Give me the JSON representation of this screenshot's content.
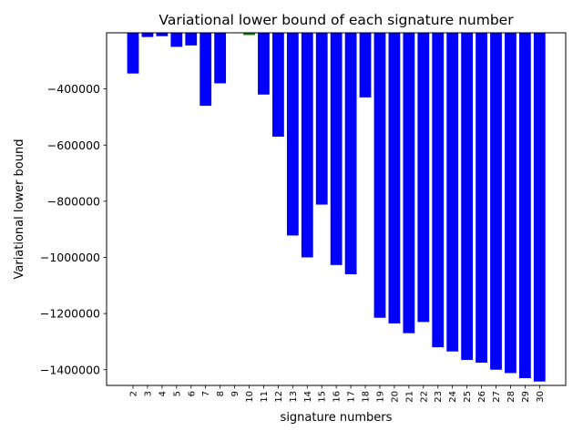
{
  "chart_data": {
    "type": "bar",
    "title": "Variational lower bound of each signature number",
    "xlabel": "signature numbers",
    "ylabel": "Variational lower bound",
    "categories": [
      "2",
      "3",
      "4",
      "5",
      "6",
      "7",
      "8",
      "9",
      "10",
      "11",
      "12",
      "13",
      "14",
      "15",
      "16",
      "17",
      "18",
      "19",
      "20",
      "21",
      "22",
      "23",
      "24",
      "25",
      "26",
      "27",
      "28",
      "29",
      "30"
    ],
    "values": [
      -345000,
      -215000,
      -212000,
      -250000,
      -245000,
      -460000,
      -380000,
      -200000,
      -208000,
      -420000,
      -570000,
      -922000,
      -1000000,
      -812000,
      -1027000,
      -1060000,
      -430000,
      -1215000,
      -1235000,
      -1270000,
      -1230000,
      -1320000,
      -1335000,
      -1365000,
      -1375000,
      -1400000,
      -1412000,
      -1430000,
      -1442000
    ],
    "bar_colors": [
      "#0000ff",
      "#0000ff",
      "#0000ff",
      "#0000ff",
      "#0000ff",
      "#0000ff",
      "#0000ff",
      "#0000ff",
      "#008000",
      "#0000ff",
      "#0000ff",
      "#0000ff",
      "#0000ff",
      "#0000ff",
      "#0000ff",
      "#0000ff",
      "#0000ff",
      "#0000ff",
      "#0000ff",
      "#0000ff",
      "#0000ff",
      "#0000ff",
      "#0000ff",
      "#0000ff",
      "#0000ff",
      "#0000ff",
      "#0000ff",
      "#0000ff",
      "#0000ff"
    ],
    "highlight_color": "#008000",
    "default_color": "#0000ff",
    "ylim": [
      -1456000,
      -200000
    ],
    "yticks": [
      -400000,
      -600000,
      -800000,
      -1000000,
      -1200000,
      -1400000
    ],
    "ytick_labels": [
      "−400000",
      "−600000",
      "−800000",
      "−1000000",
      "−1200000",
      "−1400000"
    ],
    "grid": false,
    "legend": "none"
  }
}
